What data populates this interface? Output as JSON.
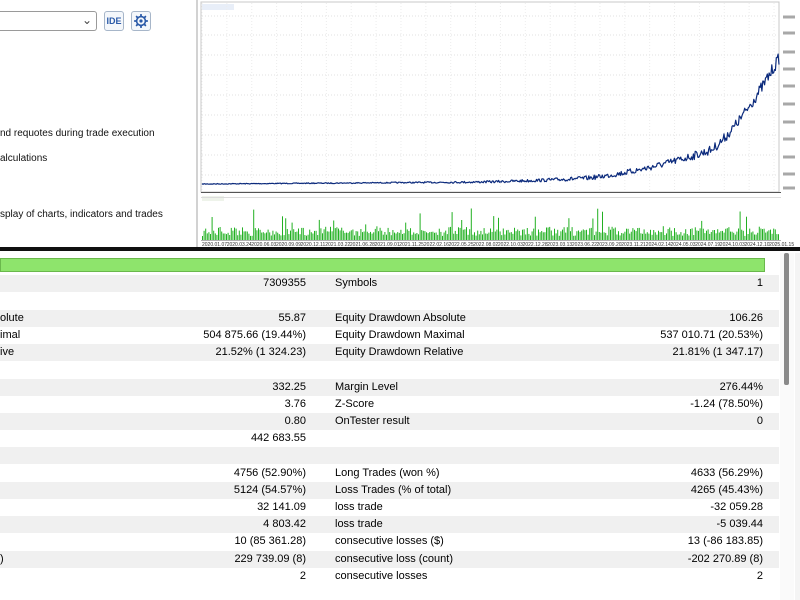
{
  "left_panel": {
    "ide_button_label": "IDE",
    "gear_icon": "gear-icon",
    "combo_icon": "chevron-down-icon",
    "options": [
      "nd requotes during trade execution",
      "alculations",
      "splay of charts, indicators and trades"
    ]
  },
  "chart": {
    "line_color": "#0b2a7c",
    "volume_color": "#22b022",
    "dates": [
      "2020.01.07",
      "2020.03.24",
      "2020.06.03",
      "2020.09.09",
      "2020.12.11",
      "2021.03.22",
      "2021.06.28",
      "2021.09.01",
      "2021.11.25",
      "2022.02.16",
      "2022.05.25",
      "2022.08.02",
      "2022.10.03",
      "2022.12.28",
      "2023.03.13",
      "2023.06.22",
      "2023.09.20",
      "2023.11.21",
      "2024.02.14",
      "2024.05.03",
      "2024.07.19",
      "2024.10.03",
      "2024.12.10",
      "2025.01.15"
    ]
  },
  "results": {
    "progress_percent": 100,
    "progress_color": "#8ee46c",
    "rows": [
      {
        "l1": "",
        "v1": "7309355",
        "l2": "Symbols",
        "v2": "1"
      },
      {
        "l1": "",
        "v1": "",
        "l2": "",
        "v2": ""
      },
      {
        "l1": "olute",
        "v1": "55.87",
        "l2": "Equity Drawdown Absolute",
        "v2": "106.26"
      },
      {
        "l1": "imal",
        "v1": "504 875.66 (19.44%)",
        "l2": "Equity Drawdown Maximal",
        "v2": "537 010.71 (20.53%)"
      },
      {
        "l1": "ive",
        "v1": "21.52% (1 324.23)",
        "l2": "Equity Drawdown Relative",
        "v2": "21.81% (1 347.17)"
      },
      {
        "l1": "",
        "v1": "",
        "l2": "",
        "v2": ""
      },
      {
        "l1": "",
        "v1": "332.25",
        "l2": "Margin Level",
        "v2": "276.44%"
      },
      {
        "l1": "",
        "v1": "3.76",
        "l2": "Z-Score",
        "v2": "-1.24 (78.50%)"
      },
      {
        "l1": "",
        "v1": "0.80",
        "l2": "OnTester result",
        "v2": "0"
      },
      {
        "l1": "",
        "v1": "442 683.55",
        "l2": "",
        "v2": ""
      },
      {
        "l1": "",
        "v1": "",
        "l2": "",
        "v2": ""
      },
      {
        "l1": "",
        "v1": "4756 (52.90%)",
        "l2": "Long Trades (won %)",
        "v2": "4633 (56.29%)"
      },
      {
        "l1": "",
        "v1": "5124 (54.57%)",
        "l2": "Loss Trades (% of total)",
        "v2": "4265 (45.43%)"
      },
      {
        "l1": "",
        "v1": "32 141.09",
        "l2": "loss trade",
        "v2": "-32 059.28"
      },
      {
        "l1": "",
        "v1": "4 803.42",
        "l2": "loss trade",
        "v2": "-5 039.44"
      },
      {
        "l1": "",
        "v1": "10 (85 361.28)",
        "l2": "consecutive losses ($)",
        "v2": "13 (-86 183.85)"
      },
      {
        "l1": ")",
        "v1": "229 739.09 (8)",
        "l2": "consecutive loss (count)",
        "v2": "-202 270.89 (8)"
      },
      {
        "l1": "",
        "v1": "2",
        "l2": "consecutive losses",
        "v2": "2"
      }
    ]
  }
}
